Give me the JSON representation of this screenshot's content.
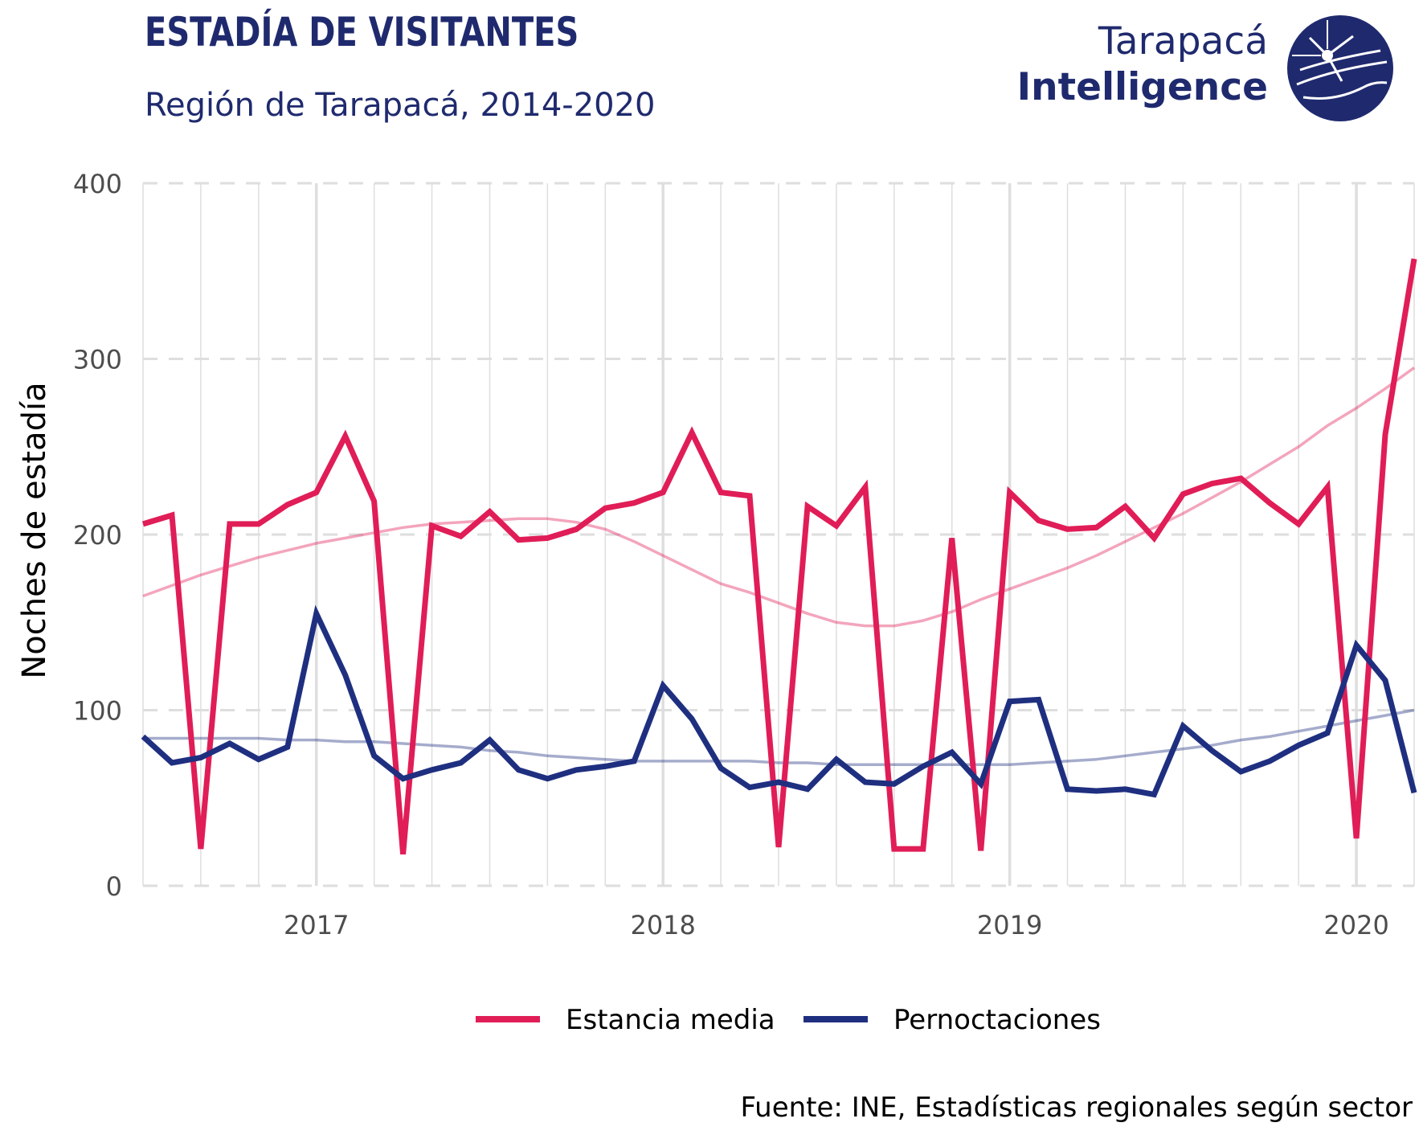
{
  "header": {
    "title": "ESTADÍA DE VISITANTES",
    "subtitle": "Región de Tarapacá, 2014-2020"
  },
  "logo": {
    "line1": "Tarapacá",
    "line2": "Intelligence",
    "icon": "globe-telescope-icon"
  },
  "source": "Fuente: INE, Estadísticas regionales según sector",
  "colors": {
    "estancia": "#e01d57",
    "pernoctaciones": "#1f2f80",
    "grid": "#dedede",
    "axis_text": "#4d4d4d"
  },
  "chart_data": {
    "type": "line",
    "ylabel": "Noches de estadía",
    "xlabel": "",
    "ylim": [
      0,
      400
    ],
    "yticks": [
      0,
      100,
      200,
      300,
      400
    ],
    "xlim": [
      "2016-07",
      "2020-03"
    ],
    "xticks": [
      "2017",
      "2018",
      "2019",
      "2020"
    ],
    "grid": true,
    "legend_position": "bottom",
    "x": [
      "2016-07",
      "2016-08",
      "2016-09",
      "2016-10",
      "2016-11",
      "2016-12",
      "2017-01",
      "2017-02",
      "2017-03",
      "2017-04",
      "2017-05",
      "2017-06",
      "2017-07",
      "2017-08",
      "2017-09",
      "2017-10",
      "2017-11",
      "2017-12",
      "2018-01",
      "2018-02",
      "2018-03",
      "2018-04",
      "2018-05",
      "2018-06",
      "2018-07",
      "2018-08",
      "2018-09",
      "2018-10",
      "2018-11",
      "2018-12",
      "2019-01",
      "2019-02",
      "2019-03",
      "2019-04",
      "2019-05",
      "2019-06",
      "2019-07",
      "2019-08",
      "2019-09",
      "2019-10",
      "2019-11",
      "2019-12",
      "2020-01",
      "2020-02",
      "2020-03"
    ],
    "series": [
      {
        "name": "Estancia media",
        "values": [
          206,
          211,
          21,
          206,
          206,
          217,
          224,
          256,
          219,
          18,
          205,
          199,
          213,
          197,
          198,
          203,
          215,
          218,
          224,
          258,
          224,
          222,
          22,
          216,
          205,
          227,
          21,
          21,
          198,
          20,
          224,
          208,
          203,
          204,
          216,
          198,
          223,
          229,
          232,
          218,
          206,
          227,
          27,
          257,
          357
        ],
        "trend": [
          165,
          171,
          177,
          182,
          187,
          191,
          195,
          198,
          201,
          204,
          206,
          207,
          208,
          209,
          209,
          207,
          203,
          196,
          188,
          180,
          172,
          167,
          161,
          155,
          150,
          148,
          148,
          151,
          156,
          163,
          169,
          175,
          181,
          188,
          196,
          204,
          212,
          221,
          230,
          240,
          250,
          262,
          272,
          283,
          295
        ]
      },
      {
        "name": "Pernoctaciones",
        "values": [
          85,
          70,
          73,
          81,
          72,
          79,
          155,
          120,
          74,
          61,
          66,
          70,
          83,
          66,
          61,
          66,
          68,
          71,
          114,
          95,
          67,
          56,
          59,
          55,
          72,
          59,
          58,
          68,
          76,
          58,
          105,
          106,
          55,
          54,
          55,
          52,
          91,
          77,
          65,
          71,
          80,
          87,
          137,
          117,
          53
        ],
        "trend": [
          84,
          84,
          84,
          84,
          84,
          83,
          83,
          82,
          82,
          81,
          80,
          79,
          77,
          76,
          74,
          73,
          72,
          71,
          71,
          71,
          71,
          71,
          70,
          70,
          69,
          69,
          69,
          69,
          69,
          69,
          69,
          70,
          71,
          72,
          74,
          76,
          78,
          80,
          83,
          85,
          88,
          91,
          94,
          97,
          100
        ]
      }
    ]
  }
}
